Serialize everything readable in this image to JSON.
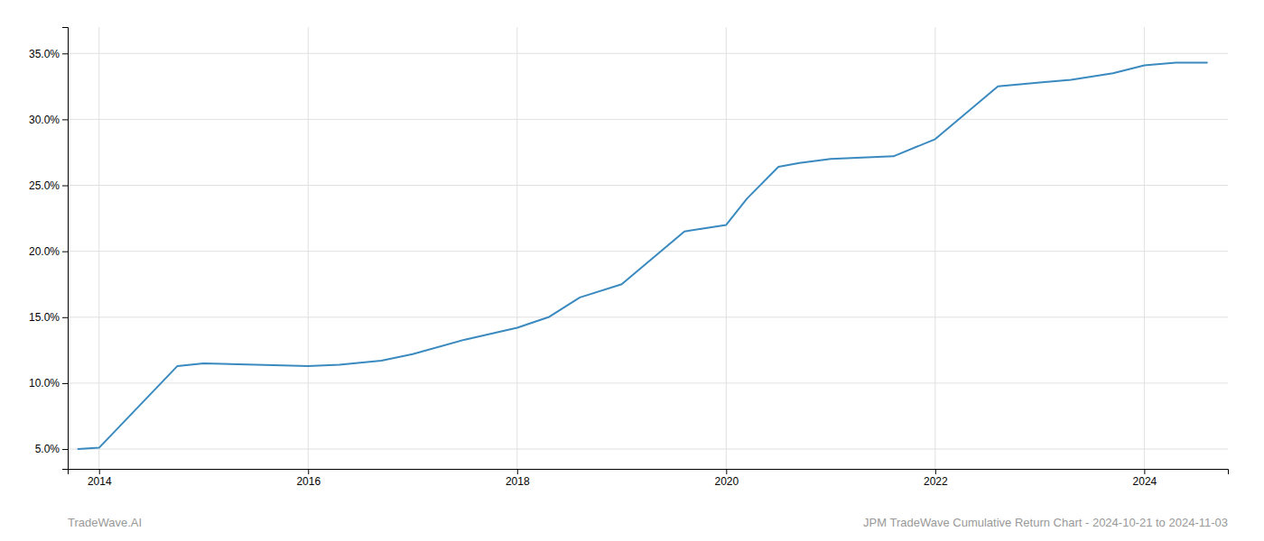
{
  "chart_data": {
    "type": "line",
    "x": [
      2013.8,
      2014.0,
      2014.75,
      2015.0,
      2015.5,
      2016.0,
      2016.3,
      2016.7,
      2017.0,
      2017.5,
      2018.0,
      2018.3,
      2018.6,
      2019.0,
      2019.3,
      2019.6,
      2020.0,
      2020.2,
      2020.5,
      2020.7,
      2021.0,
      2021.3,
      2021.6,
      2022.0,
      2022.3,
      2022.6,
      2023.0,
      2023.3,
      2023.7,
      2024.0,
      2024.3,
      2024.6
    ],
    "values": [
      5.0,
      5.1,
      11.3,
      11.5,
      11.4,
      11.3,
      11.4,
      11.7,
      12.2,
      13.3,
      14.2,
      15.0,
      16.5,
      17.5,
      19.5,
      21.5,
      22.0,
      24.0,
      26.4,
      26.7,
      27.0,
      27.1,
      27.2,
      28.5,
      30.5,
      32.5,
      32.8,
      33.0,
      33.5,
      34.1,
      34.3,
      34.3
    ],
    "color": "#3a8abf",
    "xlim": [
      2013.7,
      2024.8
    ],
    "ylim": [
      3.5,
      37.0
    ],
    "xticks": [
      2014,
      2016,
      2018,
      2020,
      2022,
      2024
    ],
    "yticks": [
      {
        "value": 5.0,
        "label": "5.0%"
      },
      {
        "value": 10.0,
        "label": "10.0%"
      },
      {
        "value": 15.0,
        "label": "15.0%"
      },
      {
        "value": 20.0,
        "label": "20.0%"
      },
      {
        "value": 25.0,
        "label": "25.0%"
      },
      {
        "value": 30.0,
        "label": "30.0%"
      },
      {
        "value": 35.0,
        "label": "35.0%"
      }
    ],
    "grid": true,
    "annotations": [
      "TradeWave.AI",
      "JPM TradeWave Cumulative Return Chart - 2024-10-21 to 2024-11-03"
    ]
  }
}
